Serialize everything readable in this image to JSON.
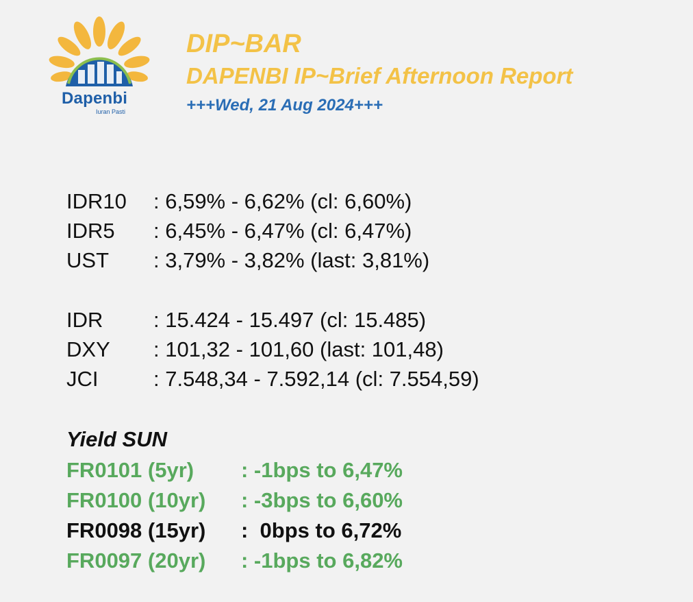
{
  "logo": {
    "name": "Dapenbi",
    "tagline": "Iuran Pasti",
    "icon": "sunburst-building-logo",
    "colors": {
      "petal": "#f3b73e",
      "arc": "#1f5fa8",
      "building": "#2e73b8",
      "ring": "#8cbf4e"
    }
  },
  "header": {
    "title": "DIP~BAR",
    "subtitle": "DAPENBI IP~Brief Afternoon Report",
    "date": "+++Wed, 21 Aug 2024+++",
    "title_color": "#f3c247",
    "date_color": "#2a6db5"
  },
  "yields": [
    {
      "label": "IDR10",
      "value": ": 6,59% - 6,62% (cl: 6,60%)"
    },
    {
      "label": "IDR5",
      "value": ": 6,45% - 6,47% (cl: 6,47%)"
    },
    {
      "label": "UST",
      "value": ": 3,79% - 3,82% (last: 3,81%)"
    }
  ],
  "markets": [
    {
      "label": "IDR",
      "value": ": 15.424 - 15.497 (cl: 15.485)"
    },
    {
      "label": "DXY",
      "value": ": 101,32 - 101,60 (last: 101,48)"
    },
    {
      "label": "JCI",
      "value": ": 7.548,34 - 7.592,14 (cl: 7.554,59)"
    }
  ],
  "sun": {
    "heading": "Yield SUN",
    "rows": [
      {
        "label": "FR0101 (5yr)",
        "value": ": -1bps to 6,47%",
        "color": "#58a95d"
      },
      {
        "label": "FR0100 (10yr)",
        "value": ": -3bps to 6,60%",
        "color": "#58a95d"
      },
      {
        "label": "FR0098 (15yr)",
        "value": ":  0bps to 6,72%",
        "color": "#111111"
      },
      {
        "label": "FR0097 (20yr)",
        "value": ": -1bps to 6,82%",
        "color": "#58a95d"
      }
    ]
  }
}
